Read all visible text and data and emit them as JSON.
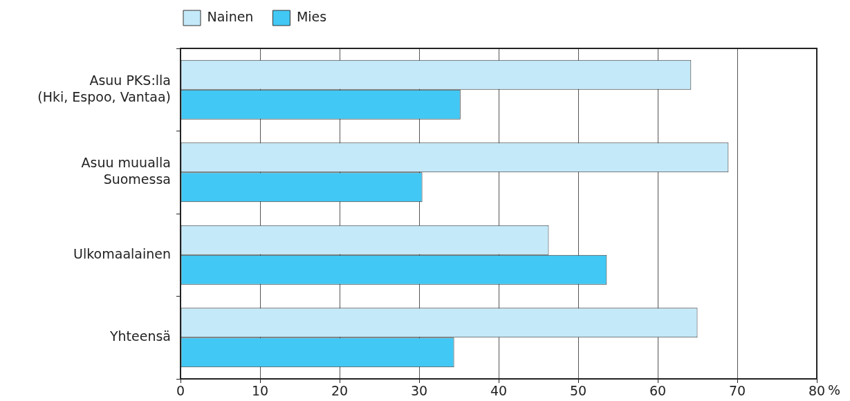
{
  "chart_data": {
    "type": "bar",
    "orientation": "horizontal",
    "categories": [
      "Asuu PKS:lla\n(Hki, Espoo, Vantaa)",
      "Asuu muualla\nSuomessa",
      "Ulkomaalainen",
      "Yhteensä"
    ],
    "series": [
      {
        "name": "Nainen",
        "color": "#c4e9f9",
        "values": [
          64.2,
          68.9,
          46.3,
          65.0
        ]
      },
      {
        "name": "Mies",
        "color": "#42c8f4",
        "values": [
          35.2,
          30.4,
          53.6,
          34.4
        ]
      }
    ],
    "xlabel": "%",
    "xlim": [
      0,
      80
    ],
    "xticks": [
      0,
      10,
      20,
      30,
      40,
      50,
      60,
      70,
      80
    ],
    "grid": "x",
    "legend": "top left"
  }
}
